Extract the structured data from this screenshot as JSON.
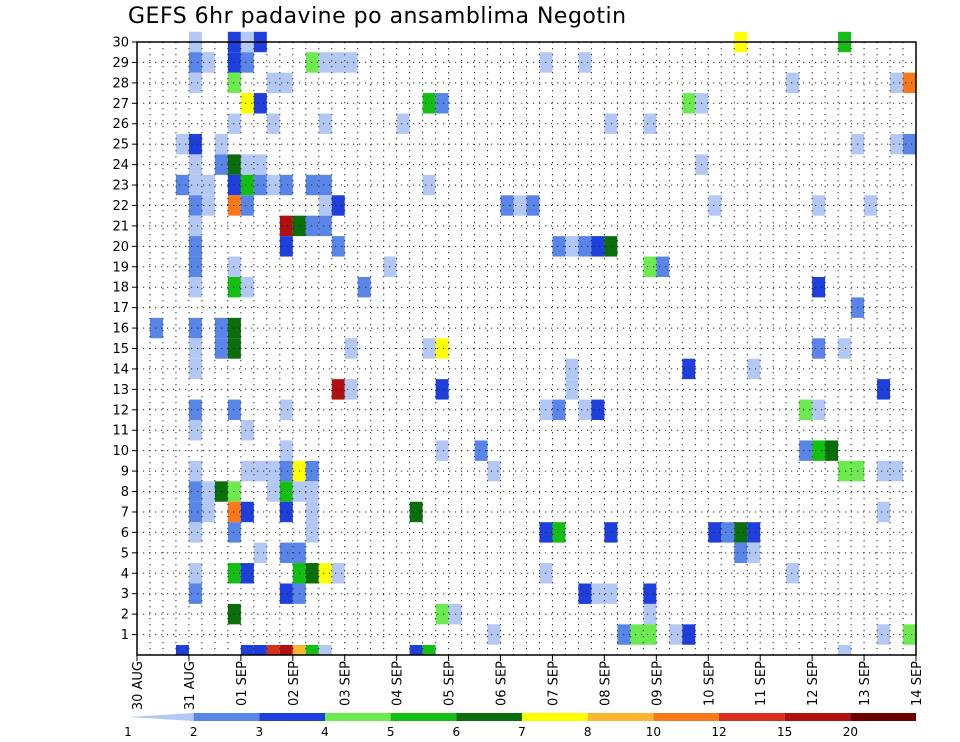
{
  "chart_data": {
    "type": "heatmap",
    "title": "GEFS 6hr padavine po ansamblima Negotin",
    "x_tick_labels": [
      "30 AUG",
      "31 AUG",
      "01 SEP",
      "02 SEP",
      "03 SEP",
      "04 SEP",
      "05 SEP",
      "06 SEP",
      "07 SEP",
      "08 SEP",
      "09 SEP",
      "10 SEP",
      "11 SEP",
      "12 SEP",
      "13 SEP",
      "14 SEP"
    ],
    "y_tick_labels": [
      "1",
      "2",
      "3",
      "4",
      "5",
      "6",
      "7",
      "8",
      "9",
      "10",
      "11",
      "12",
      "13",
      "14",
      "15",
      "16",
      "17",
      "18",
      "19",
      "20",
      "21",
      "22",
      "23",
      "24",
      "25",
      "26",
      "27",
      "28",
      "29",
      "30"
    ],
    "x_range_days": [
      0,
      15
    ],
    "steps_per_day": 4,
    "y_range": [
      0,
      30
    ],
    "grid": "dotted",
    "legend_position": "bottom",
    "legend_labels": [
      "1",
      "2",
      "3",
      "4",
      "5",
      "6",
      "7",
      "8",
      "10",
      "12",
      "15",
      "20"
    ],
    "legend_colors": [
      "#b3c8f5",
      "#5a85e8",
      "#1e3fdc",
      "#6cea50",
      "#12bf12",
      "#0a6e0a",
      "#ffff00",
      "#fbb530",
      "#f8781a",
      "#d8301a",
      "#b01010",
      "#6e0000"
    ],
    "cells": [
      [
        0.25,
        16,
        2
      ],
      [
        1,
        30,
        1
      ],
      [
        1,
        29,
        2
      ],
      [
        1,
        28,
        1
      ],
      [
        1,
        25,
        3
      ],
      [
        1,
        24,
        1
      ],
      [
        1,
        23,
        1
      ],
      [
        1,
        22,
        2
      ],
      [
        1,
        21,
        1
      ],
      [
        1,
        20,
        2
      ],
      [
        1,
        19,
        2
      ],
      [
        1,
        18,
        1
      ],
      [
        1,
        16,
        2
      ],
      [
        1,
        15,
        1
      ],
      [
        1,
        14,
        1
      ],
      [
        1,
        12,
        2
      ],
      [
        1,
        11,
        1
      ],
      [
        1,
        9,
        1
      ],
      [
        1,
        8,
        2
      ],
      [
        1,
        7,
        2
      ],
      [
        1,
        6,
        1
      ],
      [
        1,
        4,
        1
      ],
      [
        1,
        3,
        2
      ],
      [
        0.75,
        25,
        1
      ],
      [
        0.75,
        23,
        2
      ],
      [
        1.25,
        29,
        1
      ],
      [
        1.25,
        23,
        1
      ],
      [
        1.25,
        22,
        1
      ],
      [
        1.25,
        8,
        1
      ],
      [
        1.25,
        7,
        1
      ],
      [
        1.5,
        25,
        1
      ],
      [
        1.5,
        24,
        2
      ],
      [
        1.5,
        15,
        2
      ],
      [
        1.5,
        16,
        2
      ],
      [
        1.5,
        8,
        6
      ],
      [
        1.75,
        30,
        3
      ],
      [
        1.75,
        29,
        3
      ],
      [
        1.75,
        28,
        4
      ],
      [
        1.75,
        26,
        1
      ],
      [
        1.75,
        24,
        6
      ],
      [
        1.75,
        23,
        3
      ],
      [
        1.75,
        22,
        9
      ],
      [
        1.75,
        19,
        1
      ],
      [
        1.75,
        18,
        5
      ],
      [
        1.75,
        16,
        6
      ],
      [
        1.75,
        15,
        6
      ],
      [
        1.75,
        12,
        2
      ],
      [
        1.75,
        8,
        4
      ],
      [
        1.75,
        7,
        9
      ],
      [
        1.75,
        6,
        2
      ],
      [
        1.75,
        4,
        5
      ],
      [
        1.75,
        2,
        6
      ],
      [
        2,
        30,
        1
      ],
      [
        2,
        29,
        2
      ],
      [
        2,
        27,
        7
      ],
      [
        2,
        24,
        1
      ],
      [
        2,
        23,
        5
      ],
      [
        2,
        22,
        2
      ],
      [
        2,
        18,
        1
      ],
      [
        2,
        11,
        1
      ],
      [
        2,
        9,
        1
      ],
      [
        2,
        7,
        3
      ],
      [
        2,
        4,
        3
      ],
      [
        2.25,
        30,
        3
      ],
      [
        2.25,
        27,
        3
      ],
      [
        2.25,
        24,
        1
      ],
      [
        2.25,
        23,
        2
      ],
      [
        2.25,
        9,
        1
      ],
      [
        2.25,
        5,
        1
      ],
      [
        2.5,
        28,
        1
      ],
      [
        2.5,
        26,
        1
      ],
      [
        2.5,
        23,
        1
      ],
      [
        2.5,
        9,
        1
      ],
      [
        2.5,
        8,
        1
      ],
      [
        2.75,
        28,
        1
      ],
      [
        2.75,
        23,
        2
      ],
      [
        2.75,
        21,
        11
      ],
      [
        2.75,
        20,
        3
      ],
      [
        2.75,
        12,
        1
      ],
      [
        2.75,
        10,
        1
      ],
      [
        2.75,
        9,
        2
      ],
      [
        2.75,
        8,
        5
      ],
      [
        2.75,
        7,
        3
      ],
      [
        2.75,
        5,
        2
      ],
      [
        2.75,
        3,
        3
      ],
      [
        3,
        21,
        6
      ],
      [
        3,
        9,
        7
      ],
      [
        3,
        8,
        1
      ],
      [
        3,
        5,
        2
      ],
      [
        3,
        4,
        5
      ],
      [
        3,
        3,
        2
      ],
      [
        3.25,
        29,
        4
      ],
      [
        3.25,
        23,
        2
      ],
      [
        3.25,
        21,
        2
      ],
      [
        3.25,
        9,
        2
      ],
      [
        3.25,
        8,
        1
      ],
      [
        3.25,
        7,
        1
      ],
      [
        3.25,
        6,
        1
      ],
      [
        3.25,
        4,
        6
      ],
      [
        3.5,
        29,
        1
      ],
      [
        3.5,
        26,
        1
      ],
      [
        3.5,
        23,
        2
      ],
      [
        3.5,
        22,
        1
      ],
      [
        3.5,
        21,
        2
      ],
      [
        3.5,
        4,
        7
      ],
      [
        3.75,
        29,
        1
      ],
      [
        3.75,
        22,
        3
      ],
      [
        3.75,
        20,
        2
      ],
      [
        3.75,
        13,
        11
      ],
      [
        3.75,
        4,
        1
      ],
      [
        4,
        29,
        1
      ],
      [
        4,
        15,
        1
      ],
      [
        4,
        13,
        1
      ],
      [
        4.25,
        18,
        2
      ],
      [
        4.75,
        19,
        1
      ],
      [
        5,
        26,
        1
      ],
      [
        5.25,
        7,
        6
      ],
      [
        5.5,
        27,
        5
      ],
      [
        5.5,
        23,
        1
      ],
      [
        5.5,
        15,
        1
      ],
      [
        5.75,
        27,
        2
      ],
      [
        5.75,
        15,
        7
      ],
      [
        5.75,
        13,
        3
      ],
      [
        5.75,
        10,
        1
      ],
      [
        5.75,
        2,
        4
      ],
      [
        6,
        2,
        1
      ],
      [
        6.5,
        10,
        2
      ],
      [
        6.75,
        9,
        1
      ],
      [
        6.75,
        1,
        1
      ],
      [
        7,
        22,
        2
      ],
      [
        7.25,
        22,
        1
      ],
      [
        7.5,
        22,
        2
      ],
      [
        7.75,
        29,
        1
      ],
      [
        7.75,
        12,
        1
      ],
      [
        7.75,
        6,
        3
      ],
      [
        7.75,
        4,
        1
      ],
      [
        8,
        12,
        2
      ],
      [
        8,
        6,
        5
      ],
      [
        8,
        20,
        2
      ],
      [
        8.25,
        14,
        1
      ],
      [
        8.25,
        13,
        1
      ],
      [
        8.25,
        20,
        1
      ],
      [
        8.5,
        29,
        1
      ],
      [
        8.5,
        20,
        2
      ],
      [
        8.5,
        12,
        1
      ],
      [
        8.5,
        3,
        3
      ],
      [
        8.75,
        20,
        3
      ],
      [
        8.75,
        12,
        3
      ],
      [
        8.75,
        3,
        1
      ],
      [
        9,
        20,
        6
      ],
      [
        9,
        26,
        1
      ],
      [
        9,
        6,
        3
      ],
      [
        9,
        3,
        1
      ],
      [
        9.25,
        1,
        2
      ],
      [
        9.5,
        1,
        4
      ],
      [
        9.75,
        26,
        1
      ],
      [
        9.75,
        19,
        4
      ],
      [
        9.75,
        3,
        3
      ],
      [
        9.75,
        2,
        1
      ],
      [
        9.75,
        1,
        4
      ],
      [
        10,
        19,
        2
      ],
      [
        10.25,
        1,
        1
      ],
      [
        10.5,
        27,
        4
      ],
      [
        10.5,
        14,
        3
      ],
      [
        10.5,
        1,
        3
      ],
      [
        10.75,
        27,
        1
      ],
      [
        10.75,
        24,
        1
      ],
      [
        11,
        22,
        1
      ],
      [
        11,
        6,
        3
      ],
      [
        11.25,
        6,
        2
      ],
      [
        11.5,
        30,
        7
      ],
      [
        11.5,
        6,
        6
      ],
      [
        11.5,
        5,
        2
      ],
      [
        11.75,
        14,
        1
      ],
      [
        11.75,
        6,
        3
      ],
      [
        11.75,
        5,
        1
      ],
      [
        12.5,
        28,
        1
      ],
      [
        12.5,
        4,
        1
      ],
      [
        12.75,
        10,
        2
      ],
      [
        12.75,
        12,
        4
      ],
      [
        13,
        22,
        1
      ],
      [
        13,
        18,
        3
      ],
      [
        13,
        15,
        2
      ],
      [
        13,
        10,
        5
      ],
      [
        13,
        12,
        1
      ],
      [
        13.25,
        10,
        6
      ],
      [
        13.5,
        30,
        5
      ],
      [
        13.5,
        15,
        1
      ],
      [
        13.5,
        9,
        4
      ],
      [
        13.75,
        25,
        1
      ],
      [
        13.75,
        17,
        2
      ],
      [
        13.75,
        9,
        4
      ],
      [
        14,
        22,
        1
      ],
      [
        14.25,
        13,
        3
      ],
      [
        14.25,
        9,
        1
      ],
      [
        14.25,
        7,
        1
      ],
      [
        14.25,
        1,
        1
      ],
      [
        14.5,
        25,
        1
      ],
      [
        14.5,
        9,
        1
      ],
      [
        14.5,
        28,
        1
      ],
      [
        14.75,
        28,
        9
      ],
      [
        14.75,
        25,
        2
      ],
      [
        14.75,
        1,
        4
      ],
      [
        0.75,
        0,
        3
      ],
      [
        2,
        0,
        3
      ],
      [
        2.25,
        0,
        3
      ],
      [
        2.5,
        0,
        10
      ],
      [
        2.75,
        0,
        11
      ],
      [
        3,
        0,
        8
      ],
      [
        3.25,
        0,
        5
      ],
      [
        3.5,
        0,
        1
      ],
      [
        5.25,
        0,
        3
      ],
      [
        5.5,
        0,
        5
      ],
      [
        13.5,
        0,
        1
      ]
    ]
  }
}
